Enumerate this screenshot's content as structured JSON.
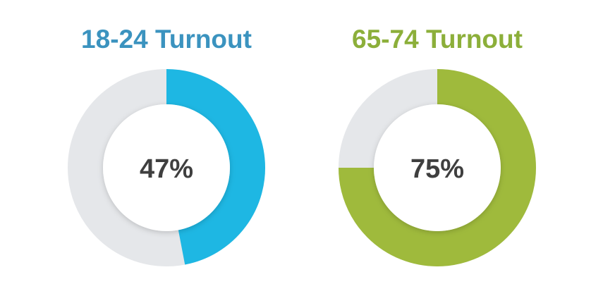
{
  "chart_data": [
    {
      "type": "donut",
      "title": "18-24 Turnout",
      "title_color": "#3b93bf",
      "values": [
        47
      ],
      "value_labels": [
        "47%"
      ],
      "color": "#1eb7e3",
      "track_color": "#e5e7ea"
    },
    {
      "type": "donut",
      "title": "65-74 Turnout",
      "title_color": "#8caf3a",
      "values": [
        75
      ],
      "value_labels": [
        "75%"
      ],
      "color": "#9fba3c",
      "track_color": "#e5e7ea"
    }
  ]
}
